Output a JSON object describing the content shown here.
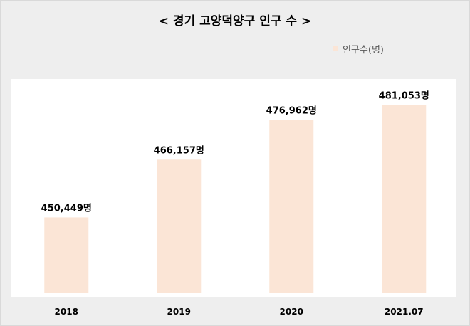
{
  "chart_data": {
    "type": "bar",
    "title": "< 경기 고양덕양구 인구 수 >",
    "categories": [
      "2018",
      "2019",
      "2020",
      "2021.07"
    ],
    "series": [
      {
        "name": "인구수(명)",
        "values": [
          450449,
          466157,
          476962,
          481053
        ],
        "data_labels": [
          "450,449명",
          "466,157명",
          "476,962명",
          "481,053명"
        ],
        "color": "#fbe5d6"
      }
    ],
    "ylim": [
      430000,
      485000
    ],
    "xlabel": "",
    "ylabel": "",
    "grid": false,
    "legend_position": "top-right"
  }
}
